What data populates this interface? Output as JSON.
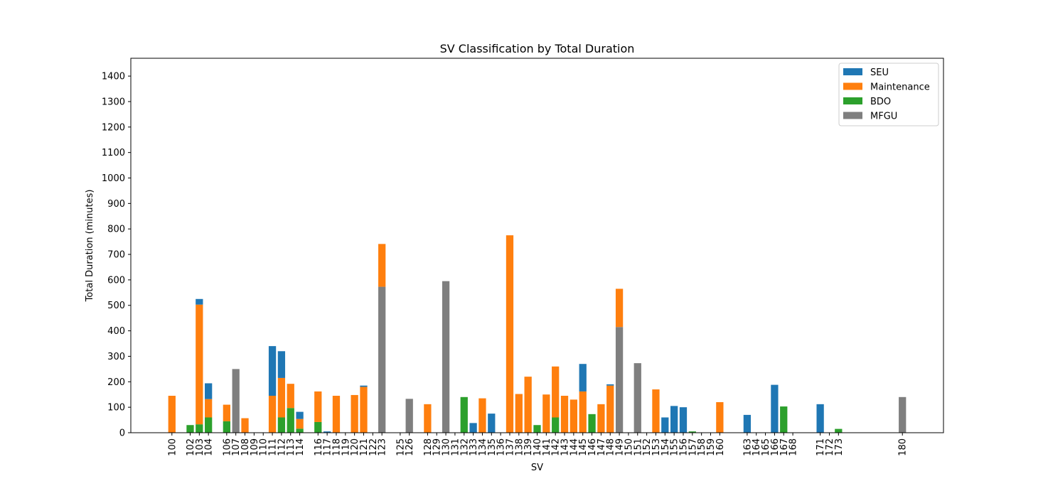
{
  "chart_data": {
    "type": "bar",
    "stacked": true,
    "title": "SV Classification by Total Duration",
    "xlabel": "SV",
    "ylabel": "Total Duration (minutes)",
    "ylim": [
      0,
      1470
    ],
    "yticks": [
      0,
      100,
      200,
      300,
      400,
      500,
      600,
      700,
      800,
      900,
      1000,
      1100,
      1200,
      1300,
      1400
    ],
    "grid": false,
    "legend_position": "top-right",
    "categories": [
      100,
      102,
      103,
      104,
      106,
      107,
      108,
      109,
      110,
      111,
      112,
      113,
      114,
      116,
      117,
      118,
      119,
      120,
      121,
      122,
      123,
      125,
      126,
      128,
      129,
      130,
      131,
      132,
      133,
      134,
      135,
      136,
      137,
      138,
      139,
      140,
      141,
      142,
      143,
      144,
      145,
      146,
      147,
      148,
      149,
      150,
      151,
      152,
      153,
      154,
      155,
      156,
      157,
      158,
      159,
      160,
      163,
      164,
      165,
      166,
      167,
      168,
      171,
      172,
      173,
      180
    ],
    "series": [
      {
        "name": "SEU",
        "color": "#1f77b4",
        "values": [
          0,
          0,
          22,
          62,
          0,
          0,
          0,
          0,
          0,
          195,
          105,
          0,
          28,
          0,
          5,
          0,
          0,
          0,
          5,
          0,
          0,
          0,
          0,
          0,
          0,
          0,
          0,
          0,
          38,
          0,
          75,
          0,
          0,
          0,
          0,
          0,
          0,
          0,
          0,
          0,
          108,
          0,
          0,
          5,
          0,
          0,
          0,
          0,
          0,
          60,
          105,
          100,
          0,
          0,
          0,
          0,
          70,
          0,
          0,
          188,
          0,
          0,
          112,
          0,
          0,
          0
        ]
      },
      {
        "name": "Maintenance",
        "color": "#ff7f0e",
        "values": [
          145,
          0,
          470,
          72,
          65,
          0,
          57,
          0,
          0,
          145,
          155,
          95,
          38,
          120,
          0,
          145,
          0,
          148,
          180,
          0,
          168,
          0,
          0,
          112,
          0,
          0,
          0,
          0,
          0,
          135,
          0,
          0,
          775,
          152,
          220,
          0,
          150,
          200,
          145,
          130,
          162,
          0,
          112,
          185,
          150,
          0,
          0,
          0,
          170,
          0,
          0,
          0,
          0,
          0,
          0,
          120,
          0,
          0,
          0,
          0,
          0,
          0,
          0,
          0,
          0,
          0
        ]
      },
      {
        "name": "BDO",
        "color": "#2ca02c",
        "values": [
          0,
          30,
          33,
          60,
          45,
          0,
          0,
          0,
          0,
          0,
          60,
          97,
          16,
          42,
          0,
          0,
          0,
          0,
          0,
          0,
          0,
          0,
          0,
          0,
          0,
          0,
          0,
          140,
          0,
          0,
          0,
          0,
          0,
          0,
          0,
          30,
          0,
          60,
          0,
          0,
          0,
          73,
          0,
          0,
          0,
          0,
          0,
          0,
          0,
          0,
          0,
          0,
          5,
          0,
          0,
          0,
          0,
          0,
          0,
          0,
          103,
          0,
          0,
          0,
          15,
          0
        ]
      },
      {
        "name": "MFGU",
        "color": "#7f7f7f",
        "values": [
          0,
          0,
          0,
          0,
          0,
          250,
          0,
          0,
          0,
          0,
          0,
          0,
          0,
          0,
          0,
          0,
          0,
          0,
          0,
          0,
          573,
          0,
          133,
          0,
          0,
          595,
          0,
          0,
          0,
          0,
          0,
          0,
          0,
          0,
          0,
          0,
          0,
          0,
          0,
          0,
          0,
          0,
          0,
          0,
          415,
          0,
          273,
          0,
          0,
          0,
          0,
          0,
          0,
          0,
          0,
          0,
          0,
          0,
          0,
          0,
          0,
          0,
          0,
          0,
          0,
          140
        ]
      }
    ]
  }
}
